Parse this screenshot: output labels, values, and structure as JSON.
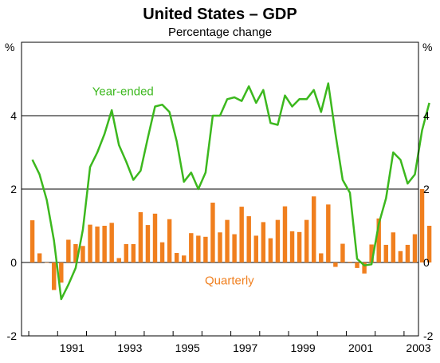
{
  "chart_data": {
    "type": "bar",
    "title": "United States – GDP",
    "subtitle": "Percentage change",
    "y_unit_label": "%",
    "ylim": [
      -2,
      6
    ],
    "yticks": [
      -2,
      0,
      2,
      4
    ],
    "xlim_year": [
      1989.75,
      2003.5
    ],
    "xticks": [
      "1991",
      "1993",
      "1995",
      "1997",
      "1999",
      "2001",
      "2003"
    ],
    "grid": "horizontal",
    "colors": {
      "quarterly": "#f07f1e",
      "year_ended": "#3cb81e",
      "axis": "#000000"
    },
    "series": [
      {
        "name": "Quarterly",
        "kind": "bar",
        "start": "1990 Q1",
        "values": [
          1.15,
          0.25,
          0.0,
          -0.75,
          -0.55,
          0.62,
          0.5,
          0.45,
          1.03,
          0.98,
          1.0,
          1.08,
          0.12,
          0.5,
          0.5,
          1.37,
          1.02,
          1.33,
          0.55,
          1.18,
          0.26,
          0.19,
          0.8,
          0.73,
          0.7,
          1.63,
          0.82,
          1.16,
          0.77,
          1.52,
          1.26,
          0.73,
          1.1,
          0.66,
          1.16,
          1.53,
          0.85,
          0.83,
          1.16,
          1.8,
          0.25,
          1.58,
          -0.12,
          0.51,
          0.02,
          -0.15,
          -0.3,
          0.49,
          1.2,
          0.48,
          0.82,
          0.31,
          0.48,
          0.77,
          2.0,
          1.0
        ]
      },
      {
        "name": "Year-ended",
        "kind": "line",
        "start": "1990 Q1",
        "values": [
          2.8,
          2.4,
          1.7,
          0.6,
          -1.0,
          -0.6,
          -0.15,
          0.9,
          2.6,
          3.0,
          3.5,
          4.15,
          3.2,
          2.75,
          2.25,
          2.5,
          3.4,
          4.25,
          4.3,
          4.1,
          3.3,
          2.2,
          2.45,
          2.0,
          2.45,
          4.0,
          4.0,
          4.45,
          4.5,
          4.4,
          4.8,
          4.35,
          4.7,
          3.8,
          3.75,
          4.55,
          4.25,
          4.45,
          4.45,
          4.7,
          4.1,
          4.88,
          3.5,
          2.25,
          1.9,
          0.1,
          -0.08,
          -0.05,
          1.05,
          1.75,
          3.0,
          2.8,
          2.15,
          2.4,
          3.6,
          4.35
        ]
      }
    ],
    "annotations": [
      {
        "text": "Year-ended",
        "series": "Year-ended"
      },
      {
        "text": "Quarterly",
        "series": "Quarterly"
      }
    ]
  }
}
